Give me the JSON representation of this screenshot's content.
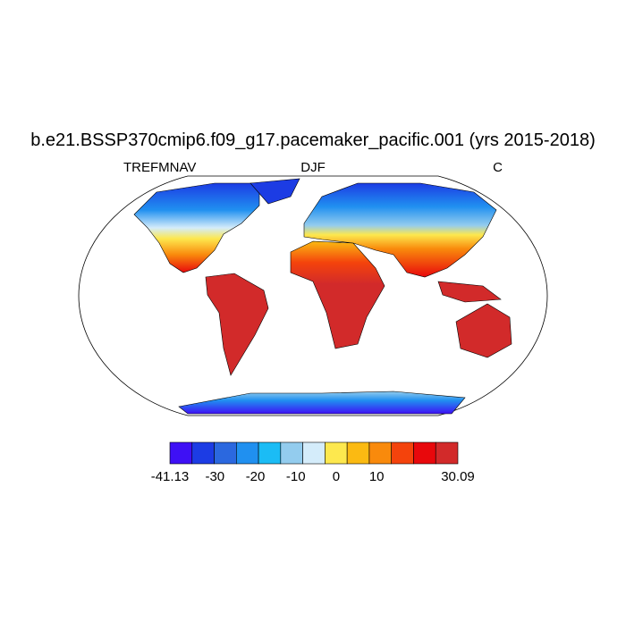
{
  "header": {
    "title": "b.e21.BSSP370cmip6.f09_g17.pacemaker_pacific.001 (yrs 2015-2018)",
    "left": "TREFMNAV",
    "center": "DJF",
    "right": "C"
  },
  "colorbar": {
    "colors": [
      "#3e10f5",
      "#1c3ce4",
      "#2b68df",
      "#2090f0",
      "#1bbcf5",
      "#93ccee",
      "#d4ecfa",
      "#fde84e",
      "#fbba12",
      "#f98a0c",
      "#f4430c",
      "#e8080c",
      "#d22a2a"
    ],
    "ticks": [
      -41.13,
      -30,
      -20,
      -10,
      0,
      10,
      30.09
    ]
  }
}
